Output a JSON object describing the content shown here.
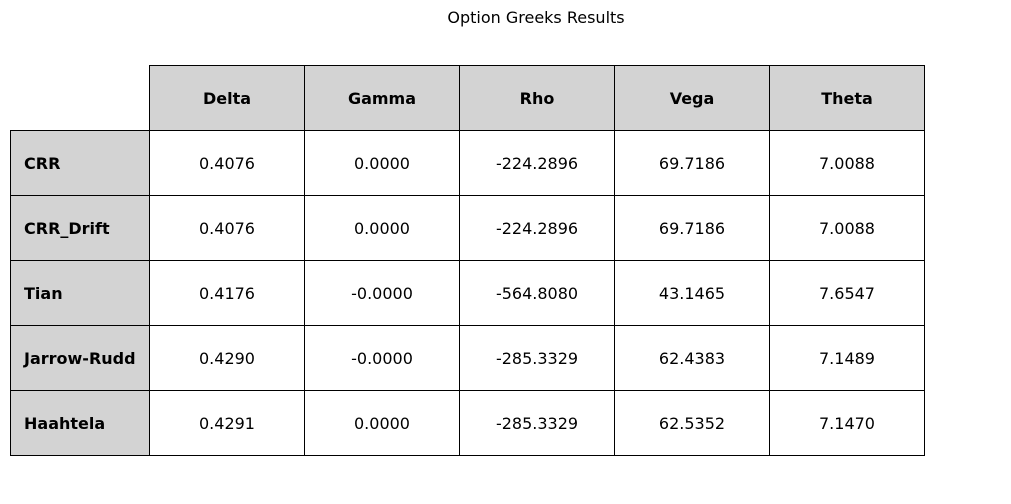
{
  "chart_data": {
    "type": "table",
    "title": "Option Greeks Results",
    "columns": [
      "Delta",
      "Gamma",
      "Rho",
      "Vega",
      "Theta"
    ],
    "rows": [
      {
        "label": "CRR",
        "values": [
          "0.4076",
          "0.0000",
          "-224.2896",
          "69.7186",
          "7.0088"
        ]
      },
      {
        "label": "CRR_Drift",
        "values": [
          "0.4076",
          "0.0000",
          "-224.2896",
          "69.7186",
          "7.0088"
        ]
      },
      {
        "label": "Tian",
        "values": [
          "0.4176",
          "-0.0000",
          "-564.8080",
          "43.1465",
          "7.6547"
        ]
      },
      {
        "label": "Jarrow-Rudd",
        "values": [
          "0.4290",
          "-0.0000",
          "-285.3329",
          "62.4383",
          "7.1489"
        ]
      },
      {
        "label": "Haahtela",
        "values": [
          "0.4291",
          "0.0000",
          "-285.3329",
          "62.5352",
          "7.1470"
        ]
      }
    ],
    "header_color": "#d3d3d3",
    "cell_color": "#ffffff",
    "border_color": "#000000"
  }
}
